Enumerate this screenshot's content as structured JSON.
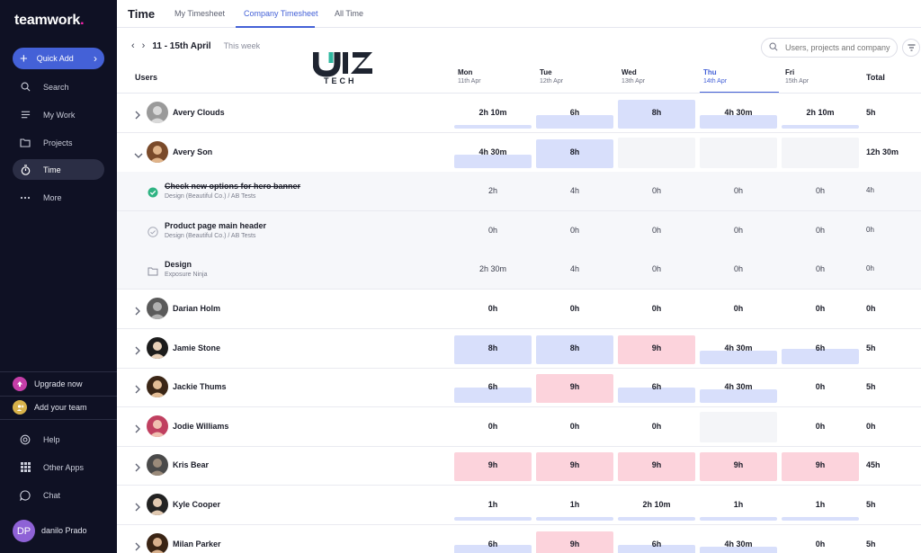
{
  "app": {
    "logo_text": "teamwork",
    "logo_dot": ".",
    "quick_add": "Quick Add",
    "nav": [
      {
        "label": "Search",
        "icon": "search-icon"
      },
      {
        "label": "My Work",
        "icon": "list-icon"
      },
      {
        "label": "Projects",
        "icon": "folder-icon"
      },
      {
        "label": "Time",
        "icon": "stopwatch-icon",
        "active": true
      },
      {
        "label": "More",
        "icon": "more-icon"
      }
    ],
    "upgrade": "Upgrade now",
    "add_team": "Add your team",
    "help": "Help",
    "other_apps": "Other Apps",
    "chat": "Chat",
    "user_initials": "DP",
    "user_name": "danilo Prado"
  },
  "header": {
    "title": "Time",
    "tabs": [
      "My Timesheet",
      "Company Timesheet",
      "All Time"
    ]
  },
  "toolbar": {
    "week_range": "11 - 15th April",
    "this_week": "This week",
    "search_placeholder": "Users, projects and company"
  },
  "watermark": {
    "text": "TECH"
  },
  "table": {
    "users_label": "Users",
    "total_label": "Total",
    "days": [
      {
        "name": "Mon",
        "date": "11th Apr"
      },
      {
        "name": "Tue",
        "date": "12th Apr"
      },
      {
        "name": "Wed",
        "date": "13th Apr"
      },
      {
        "name": "Thu",
        "date": "14th Apr",
        "today": true
      },
      {
        "name": "Fri",
        "date": "15th Apr"
      }
    ],
    "rows": [
      {
        "type": "user",
        "name": "Avery Clouds",
        "hours": [
          "2h 10m",
          "6h",
          "8h",
          "4h 30m",
          "2h 10m"
        ],
        "fill": [
          0.08,
          0.45,
          0.95,
          0.45,
          0.08
        ],
        "status": [
          "normal",
          "normal",
          "normal",
          "normal",
          "normal"
        ],
        "total": "5h",
        "expanded": false
      },
      {
        "type": "user",
        "name": "Avery Son",
        "hours": [
          "4h 30m",
          "8h",
          "",
          "",
          ""
        ],
        "fill": [
          0.45,
          0.95,
          0,
          0,
          0
        ],
        "status": [
          "normal",
          "normal",
          "empty",
          "empty",
          "empty"
        ],
        "total": "12h 30m",
        "expanded": true
      },
      {
        "type": "task",
        "name": "Check new options for hero banner",
        "meta": "Design (Beautiful Co.)  /  AB Tests",
        "done": true,
        "hours": [
          "2h",
          "4h",
          "0h",
          "0h",
          "0h"
        ],
        "total": "4h"
      },
      {
        "type": "task",
        "name": "Product page main header",
        "meta": "Design (Beautiful Co.)  /  AB Tests",
        "done": false,
        "hours": [
          "0h",
          "0h",
          "0h",
          "0h",
          "0h"
        ],
        "total": "0h"
      },
      {
        "type": "folder",
        "name": "Design",
        "meta": "Exposure Ninja",
        "hours": [
          "2h 30m",
          "4h",
          "0h",
          "0h",
          "0h"
        ],
        "total": "0h"
      },
      {
        "type": "user",
        "name": "Darian Holm",
        "hours": [
          "0h",
          "0h",
          "0h",
          "0h",
          "0h"
        ],
        "fill": [
          0,
          0,
          0,
          0,
          0
        ],
        "status": [
          "normal",
          "normal",
          "normal",
          "normal",
          "normal"
        ],
        "total": "0h",
        "expanded": false
      },
      {
        "type": "user",
        "name": "Jamie Stone",
        "hours": [
          "8h",
          "8h",
          "9h",
          "4h 30m",
          "6h"
        ],
        "fill": [
          0.95,
          0.95,
          0.95,
          0.45,
          0.5
        ],
        "status": [
          "normal",
          "normal",
          "over",
          "normal",
          "normal"
        ],
        "total": "5h",
        "expanded": false
      },
      {
        "type": "user",
        "name": "Jackie Thums",
        "hours": [
          "6h",
          "9h",
          "6h",
          "4h 30m",
          "0h"
        ],
        "fill": [
          0.5,
          0.95,
          0.5,
          0.45,
          0
        ],
        "status": [
          "normal",
          "over",
          "normal",
          "normal",
          "normal"
        ],
        "total": "5h",
        "expanded": false
      },
      {
        "type": "user",
        "name": "Jodie Williams",
        "hours": [
          "0h",
          "0h",
          "0h",
          "",
          "0h"
        ],
        "fill": [
          0,
          0,
          0,
          0,
          0
        ],
        "status": [
          "normal",
          "normal",
          "normal",
          "empty",
          "normal"
        ],
        "total": "0h",
        "expanded": false
      },
      {
        "type": "user",
        "name": "Kris Bear",
        "hours": [
          "9h",
          "9h",
          "9h",
          "9h",
          "9h"
        ],
        "fill": [
          0.95,
          0.95,
          0.95,
          0.95,
          0.95
        ],
        "status": [
          "over",
          "over",
          "over",
          "over",
          "over"
        ],
        "total": "45h",
        "expanded": false
      },
      {
        "type": "user",
        "name": "Kyle Cooper",
        "hours": [
          "1h",
          "1h",
          "2h 10m",
          "1h",
          "1h"
        ],
        "fill": [
          0.08,
          0.08,
          0.12,
          0.08,
          0.08
        ],
        "status": [
          "normal",
          "normal",
          "normal",
          "normal",
          "normal"
        ],
        "total": "5h",
        "expanded": false
      },
      {
        "type": "user",
        "name": "Milan Parker",
        "hours": [
          "6h",
          "9h",
          "6h",
          "4h 30m",
          "0h"
        ],
        "fill": [
          0.5,
          0.95,
          0.5,
          0.45,
          0
        ],
        "status": [
          "normal",
          "over",
          "normal",
          "normal",
          "normal"
        ],
        "total": "5h",
        "expanded": false
      }
    ]
  },
  "colors": {
    "normal_fill": "#d8dffb",
    "over_fill": "#fcd3dc",
    "empty_fill": "#f4f5f8",
    "accent": "#4461d7"
  }
}
